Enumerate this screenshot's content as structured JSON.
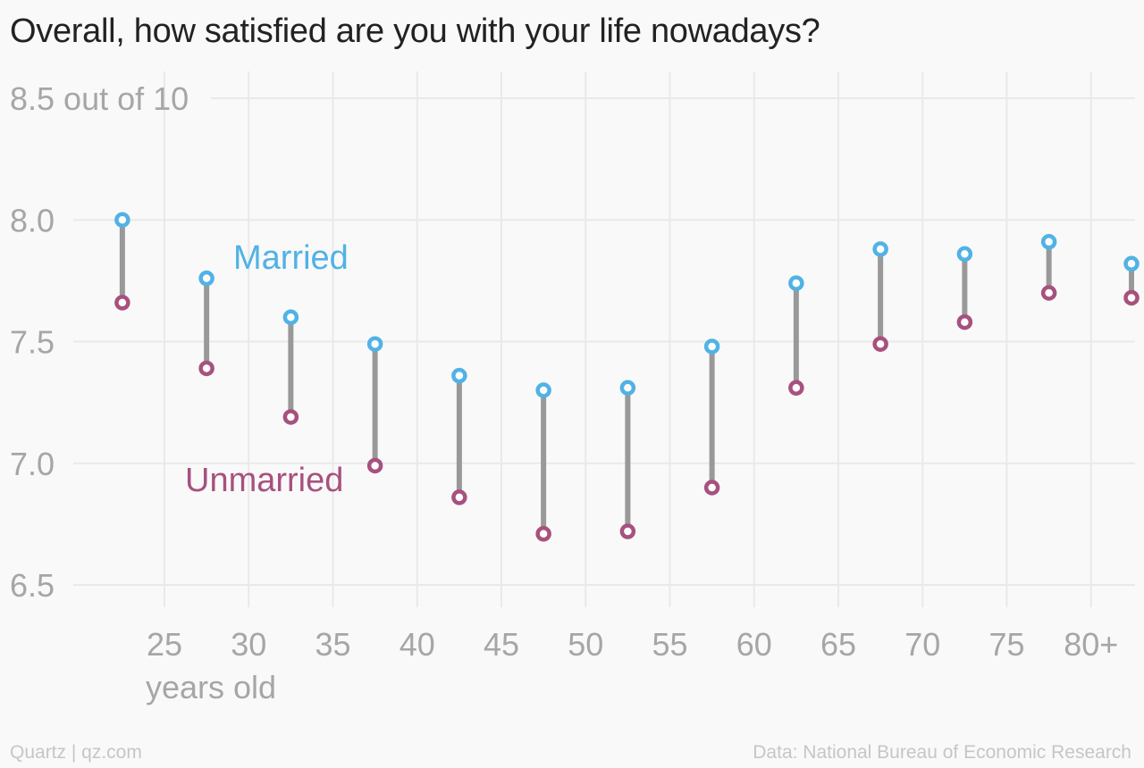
{
  "title": "Overall, how satisfied are you with your life nowadays?",
  "footer": {
    "source_credit": "Quartz | qz.com",
    "data_credit": "Data: National Bureau of Economic Research"
  },
  "colors": {
    "married": "#51b2e5",
    "unmarried": "#a7517f",
    "connector": "#999999",
    "grid": "#e9e9e9",
    "axis_text": "#a6a6a6"
  },
  "chart_data": {
    "type": "dumbbell",
    "title": "Overall, how satisfied are you with your life nowadays?",
    "xlabel": "years old",
    "xlim": [
      20,
      83
    ],
    "ylim": [
      6.35,
      8.5
    ],
    "x_ticks": [
      25,
      30,
      35,
      40,
      45,
      50,
      55,
      60,
      65,
      70,
      75,
      80
    ],
    "x_tick_labels": [
      "25",
      "30",
      "35",
      "40",
      "45",
      "50",
      "55",
      "60",
      "65",
      "70",
      "75",
      "80+"
    ],
    "y_ticks": [
      6.5,
      7.0,
      7.5,
      8.0,
      8.5
    ],
    "y_tick_labels": [
      "6.5",
      "7.0",
      "7.5",
      "8.0",
      "8.5 out of 10"
    ],
    "grid": true,
    "x": [
      22.5,
      27.5,
      32.5,
      37.5,
      42.5,
      47.5,
      52.5,
      57.5,
      62.5,
      67.5,
      72.5,
      77.5,
      82.5
    ],
    "series": [
      {
        "name": "Married",
        "values": [
          8.0,
          7.76,
          7.6,
          7.49,
          7.36,
          7.3,
          7.31,
          7.48,
          7.74,
          7.88,
          7.86,
          7.91,
          7.82
        ]
      },
      {
        "name": "Unmarried",
        "values": [
          7.66,
          7.39,
          7.19,
          6.99,
          6.86,
          6.71,
          6.72,
          6.9,
          7.31,
          7.49,
          7.58,
          7.7,
          7.68
        ]
      }
    ],
    "annotations": [
      {
        "text": "Married",
        "series": "Married"
      },
      {
        "text": "Unmarried",
        "series": "Unmarried"
      }
    ]
  }
}
